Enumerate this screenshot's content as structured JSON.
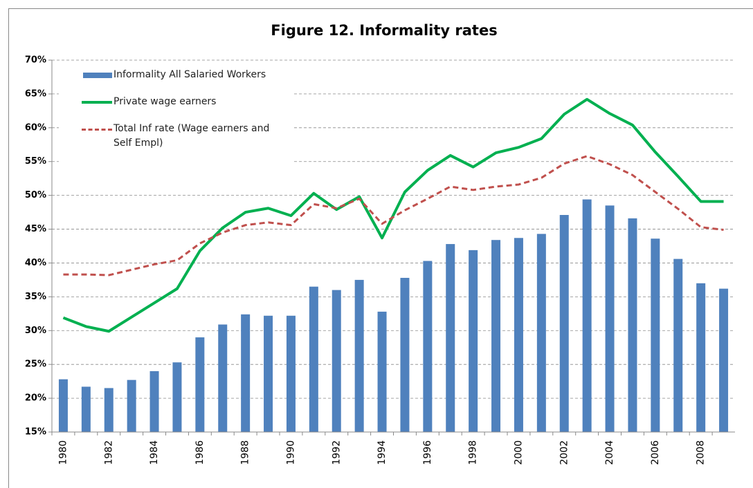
{
  "chart_data": {
    "type": "bar_line",
    "title": "Figure 12. Informality rates",
    "categories": [
      "1980",
      null,
      "1982",
      null,
      "1984",
      null,
      "1986",
      null,
      "1988",
      null,
      "1990",
      null,
      "1992",
      null,
      "1994",
      null,
      "1996",
      null,
      "1998",
      null,
      "2000",
      null,
      "2002",
      null,
      "2004",
      null,
      "2006",
      null,
      "2008",
      null
    ],
    "series": [
      {
        "name": "Informality All Salaried Workers",
        "type": "bar",
        "color": "#4f81bd",
        "values": [
          22.8,
          21.7,
          21.5,
          22.7,
          24.0,
          25.3,
          29.0,
          30.9,
          32.4,
          32.2,
          32.2,
          36.5,
          36.0,
          37.5,
          32.8,
          37.8,
          40.3,
          42.8,
          41.9,
          43.4,
          43.7,
          44.3,
          47.1,
          49.4,
          48.5,
          46.6,
          43.6,
          40.6,
          37.0,
          36.2
        ]
      },
      {
        "name": "Private wage earners",
        "type": "line",
        "color": "#00b050",
        "values": [
          31.9,
          30.6,
          29.9,
          32.0,
          34.1,
          36.2,
          41.8,
          45.2,
          47.5,
          48.1,
          47.0,
          50.3,
          47.9,
          49.8,
          43.7,
          50.5,
          53.7,
          55.9,
          54.2,
          56.3,
          57.1,
          58.4,
          62.0,
          64.2,
          62.1,
          60.4,
          56.4,
          52.8,
          49.1,
          49.1
        ]
      },
      {
        "name": "Total Inf rate (Wage earners and Self Empl)",
        "type": "dashed-line",
        "color": "#c0504d",
        "values": [
          38.3,
          38.3,
          38.2,
          39.0,
          39.8,
          40.4,
          42.9,
          44.5,
          45.6,
          46.0,
          45.6,
          48.7,
          48.1,
          49.5,
          45.8,
          47.8,
          49.5,
          51.3,
          50.8,
          51.3,
          51.6,
          52.6,
          54.7,
          55.8,
          54.6,
          53.0,
          50.5,
          48.0,
          45.3,
          44.9
        ]
      }
    ],
    "ylim": [
      15,
      70
    ],
    "yticks": [
      {
        "value": 15,
        "label": "15%"
      },
      {
        "value": 20,
        "label": "20%"
      },
      {
        "value": 25,
        "label": "25%"
      },
      {
        "value": 30,
        "label": "30%"
      },
      {
        "value": 35,
        "label": "35%"
      },
      {
        "value": 40,
        "label": "40%"
      },
      {
        "value": 45,
        "label": "45%"
      },
      {
        "value": 50,
        "label": "50%"
      },
      {
        "value": 55,
        "label": "55%"
      },
      {
        "value": 60,
        "label": "60%"
      },
      {
        "value": 65,
        "label": "65%"
      },
      {
        "value": 70,
        "label": "70%"
      }
    ],
    "grid": true,
    "legend": "upper-left"
  }
}
